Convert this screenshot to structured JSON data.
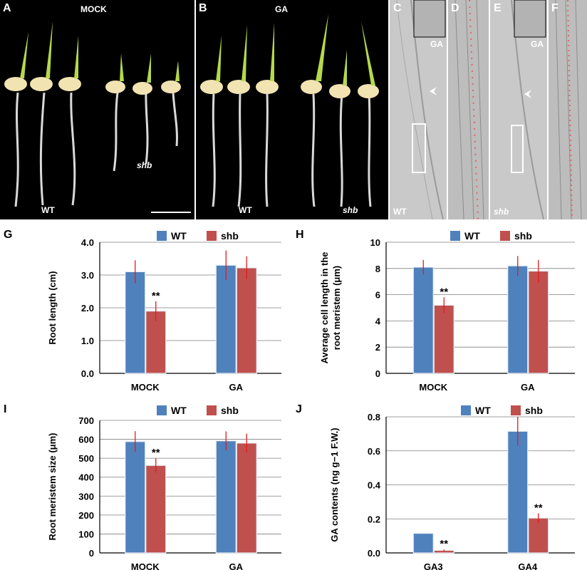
{
  "photos": {
    "A": {
      "label": "A",
      "title": "MOCK",
      "tag_wt": "WT",
      "tag_mut": "shb"
    },
    "B": {
      "label": "B",
      "title": "GA",
      "tag_wt": "WT",
      "tag_mut": "shb"
    },
    "C": {
      "label": "C",
      "inset": "GA",
      "tag": "WT"
    },
    "D": {
      "label": "D"
    },
    "E": {
      "label": "E",
      "inset": "GA",
      "tag": "shb"
    },
    "F": {
      "label": "F"
    }
  },
  "colors": {
    "wt": "#4F81BD",
    "shb": "#C0504D",
    "error": "#E41A1C"
  },
  "chart_data": [
    {
      "panel": "G",
      "type": "bar",
      "categories": [
        "MOCK",
        "GA"
      ],
      "ylabel": "Root length (cm)",
      "ylim": [
        0,
        4
      ],
      "yticks": [
        "0.0",
        "1.0",
        "2.0",
        "3.0",
        "4.0"
      ],
      "ytick_values": [
        0,
        1,
        2,
        3,
        4
      ],
      "legend": [
        "WT",
        "shb"
      ],
      "legend_position": "top",
      "series": [
        {
          "name": "WT",
          "values": [
            3.1,
            3.3
          ],
          "errors": [
            0.35,
            0.45
          ]
        },
        {
          "name": "shb",
          "values": [
            1.9,
            3.22
          ],
          "errors": [
            0.3,
            0.35
          ]
        }
      ],
      "annotations": [
        {
          "text": "**",
          "series": 1,
          "category": 0
        }
      ]
    },
    {
      "panel": "H",
      "type": "bar",
      "categories": [
        "MOCK",
        "GA"
      ],
      "ylabel": "Average cell length in the root meristem (μm)",
      "ylabel_lines": [
        "Average cell length in the",
        "root meristem (μm)"
      ],
      "ylim": [
        0,
        10
      ],
      "yticks": [
        "0",
        "2",
        "4",
        "6",
        "8",
        "10"
      ],
      "ytick_values": [
        0,
        2,
        4,
        6,
        8,
        10
      ],
      "legend": [
        "WT",
        "shb"
      ],
      "legend_position": "top",
      "series": [
        {
          "name": "WT",
          "values": [
            8.1,
            8.2
          ],
          "errors": [
            0.55,
            0.75
          ]
        },
        {
          "name": "shb",
          "values": [
            5.2,
            7.8
          ],
          "errors": [
            0.6,
            0.85
          ]
        }
      ],
      "annotations": [
        {
          "text": "**",
          "series": 1,
          "category": 0
        }
      ]
    },
    {
      "panel": "I",
      "type": "bar",
      "categories": [
        "MOCK",
        "GA"
      ],
      "ylabel": "Root meristem size (μm)",
      "ylim": [
        0,
        700
      ],
      "yticks": [
        "0",
        "100",
        "200",
        "300",
        "400",
        "500",
        "600",
        "700"
      ],
      "ytick_values": [
        0,
        100,
        200,
        300,
        400,
        500,
        600,
        700
      ],
      "legend": [
        "WT",
        "shb"
      ],
      "legend_position": "top",
      "series": [
        {
          "name": "WT",
          "values": [
            588,
            592
          ],
          "errors": [
            55,
            50
          ]
        },
        {
          "name": "shb",
          "values": [
            462,
            580
          ],
          "errors": [
            38,
            50
          ]
        }
      ],
      "annotations": [
        {
          "text": "**",
          "series": 1,
          "category": 0
        }
      ]
    },
    {
      "panel": "J",
      "type": "bar",
      "categories": [
        "GA3",
        "GA4"
      ],
      "ylabel": "GA contents (ng g−1 F.W.)",
      "ylim": [
        0,
        0.8
      ],
      "yticks": [
        "0.0",
        "0.2",
        "0.4",
        "0.6",
        "0.8"
      ],
      "ytick_values": [
        0,
        0.2,
        0.4,
        0.6,
        0.8
      ],
      "legend": [
        "WT",
        "shb"
      ],
      "legend_position": "top",
      "series": [
        {
          "name": "WT",
          "values": [
            0.115,
            0.715
          ],
          "errors": [
            0,
            0.085
          ]
        },
        {
          "name": "shb",
          "values": [
            0.015,
            0.205
          ],
          "errors": [
            0.005,
            0.028
          ]
        }
      ],
      "annotations": [
        {
          "text": "**",
          "series": 1,
          "category": 0
        },
        {
          "text": "**",
          "series": 1,
          "category": 1
        }
      ]
    }
  ]
}
